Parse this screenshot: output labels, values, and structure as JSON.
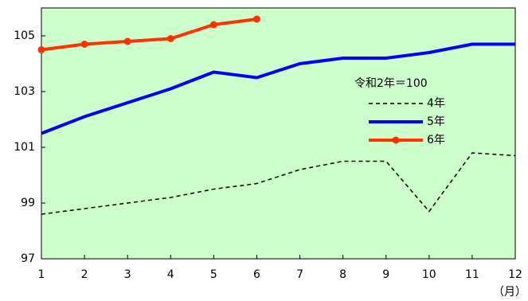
{
  "chart_data": {
    "type": "line",
    "x_label": "（月）",
    "legend_title": "令和2年＝100",
    "x": [
      1,
      2,
      3,
      4,
      5,
      6,
      7,
      8,
      9,
      10,
      11,
      12
    ],
    "xlim": [
      1,
      12
    ],
    "xticks": [
      1,
      2,
      3,
      4,
      5,
      6,
      7,
      8,
      9,
      10,
      11,
      12
    ],
    "ylim": [
      97,
      106
    ],
    "yticks": [
      97,
      99,
      101,
      103,
      105
    ],
    "background": "#ccffcc",
    "grid": false,
    "legend": "right",
    "series": [
      {
        "name": "4年",
        "color": "#000000",
        "dash": "dashed",
        "values": [
          98.6,
          98.8,
          99.0,
          99.2,
          99.5,
          99.7,
          100.2,
          100.5,
          100.5,
          98.7,
          100.8,
          100.7
        ]
      },
      {
        "name": "5年",
        "color": "#0000ff",
        "values": [
          101.5,
          102.1,
          102.6,
          103.1,
          103.7,
          103.5,
          104.0,
          104.2,
          104.2,
          104.4,
          104.7,
          104.7
        ]
      },
      {
        "name": "6年",
        "color": "#ff3300",
        "marker": "circle",
        "values": [
          104.5,
          104.7,
          104.8,
          104.9,
          105.4,
          105.6,
          null,
          null,
          null,
          null,
          null,
          null
        ]
      }
    ]
  }
}
